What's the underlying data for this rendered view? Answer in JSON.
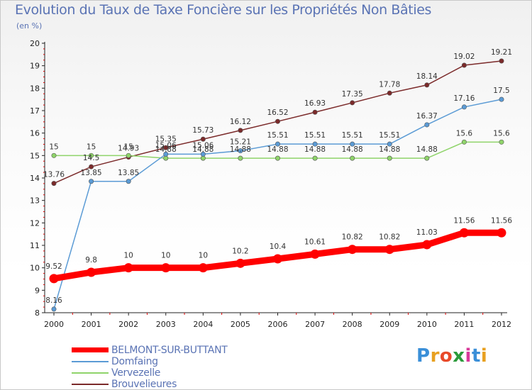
{
  "title": "Evolution du Taux de Taxe Foncière sur les Propriétés Non Bâties",
  "unit": "(en %)",
  "logo": {
    "text": "Proxiti",
    "colors": [
      "#3a8fd8",
      "#e8a020",
      "#e84a2a",
      "#2a9a3a",
      "#d83a9a",
      "#3a8fd8",
      "#e8a020"
    ]
  },
  "chart_data": {
    "type": "line",
    "title": "Evolution du Taux de Taxe Foncière sur les Propriétés Non Bâties",
    "ylabel": "(en %)",
    "xlabel": "",
    "x": [
      "2000",
      "2001",
      "2002",
      "2003",
      "2004",
      "2005",
      "2006",
      "2007",
      "2008",
      "2009",
      "2010",
      "2011",
      "2012"
    ],
    "ylim": [
      8,
      20
    ],
    "yticks": [
      "8",
      "9",
      "10",
      "11",
      "12",
      "13",
      "14",
      "15",
      "16",
      "17",
      "18",
      "19",
      "20"
    ],
    "grid": false,
    "legend_position": "bottom-left",
    "series": [
      {
        "name": "BELMONT-SUR-BUTTANT",
        "color": "#ff0000",
        "values": [
          9.52,
          9.8,
          10,
          10,
          10,
          10.2,
          10.4,
          10.61,
          10.82,
          10.82,
          11.03,
          11.56,
          11.56
        ],
        "labels": [
          "9.52",
          "9.8",
          "10",
          "10",
          "10",
          "10.2",
          "10.4",
          "10.61",
          "10.82",
          "10.82",
          "11.03",
          "11.56",
          "11.56"
        ]
      },
      {
        "name": "Domfaing",
        "color": "#5b9bd5",
        "values": [
          8.16,
          13.85,
          13.85,
          15.06,
          15.06,
          15.21,
          15.51,
          15.51,
          15.51,
          15.51,
          16.37,
          17.16,
          17.5
        ],
        "labels": [
          "8.16",
          "13.85",
          "13.85",
          "15.06",
          "15.06",
          "15.21",
          "15.51",
          "15.51",
          "15.51",
          "15.51",
          "16.37",
          "17.16",
          "17.5"
        ]
      },
      {
        "name": "Vervezelle",
        "color": "#8fd46a",
        "values": [
          15,
          15,
          15,
          14.88,
          14.88,
          14.88,
          14.88,
          14.88,
          14.88,
          14.88,
          14.88,
          15.6,
          15.6
        ],
        "labels": [
          "15",
          "15",
          "15",
          "14.88",
          "14.88",
          "14.88",
          "14.88",
          "14.88",
          "14.88",
          "14.88",
          "14.88",
          "15.6",
          "15.6"
        ]
      },
      {
        "name": "Brouvelieures",
        "color": "#7b2a2a",
        "values": [
          13.76,
          14.5,
          14.93,
          15.35,
          15.73,
          16.12,
          16.52,
          16.93,
          17.35,
          17.78,
          18.14,
          19.02,
          19.21
        ],
        "labels": [
          "13.76",
          "14.5",
          "14.93",
          "15.35",
          "15.73",
          "16.12",
          "16.52",
          "16.93",
          "17.35",
          "17.78",
          "18.14",
          "19.02",
          "19.21"
        ]
      }
    ]
  }
}
